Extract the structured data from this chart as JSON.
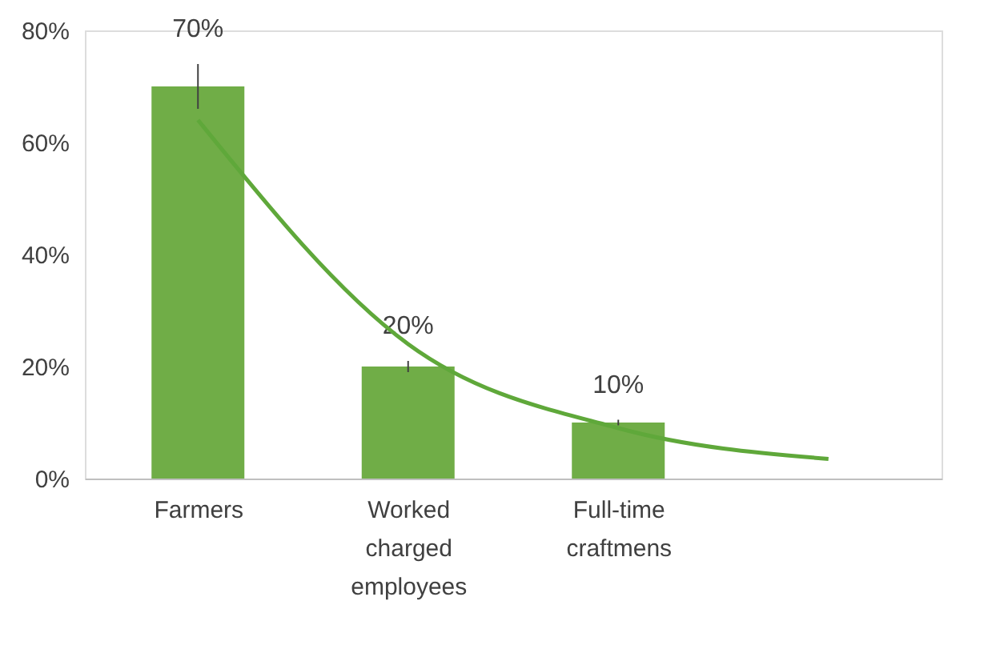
{
  "chart_data": {
    "type": "bar",
    "categories": [
      "Farmers",
      "Worked charged employees",
      "Full-time craftmens",
      null
    ],
    "series": [
      {
        "color": "#70ad47",
        "values": [
          70,
          20,
          10,
          null
        ],
        "errors": [
          4,
          1,
          0.5,
          null
        ],
        "value_labels": [
          "70%",
          "20%",
          "10%",
          null
        ]
      },
      {
        "type": "line",
        "color": "#5fa83a",
        "values": [
          64,
          24,
          9,
          3.5
        ]
      }
    ],
    "ylim": [
      0,
      80
    ],
    "yticks": [
      {
        "value": 0,
        "label": "0%"
      },
      {
        "value": 20,
        "label": "20%"
      },
      {
        "value": 40,
        "label": "40%"
      },
      {
        "value": 60,
        "label": "60%"
      },
      {
        "value": 80,
        "label": "80%"
      }
    ],
    "grid": false
  }
}
